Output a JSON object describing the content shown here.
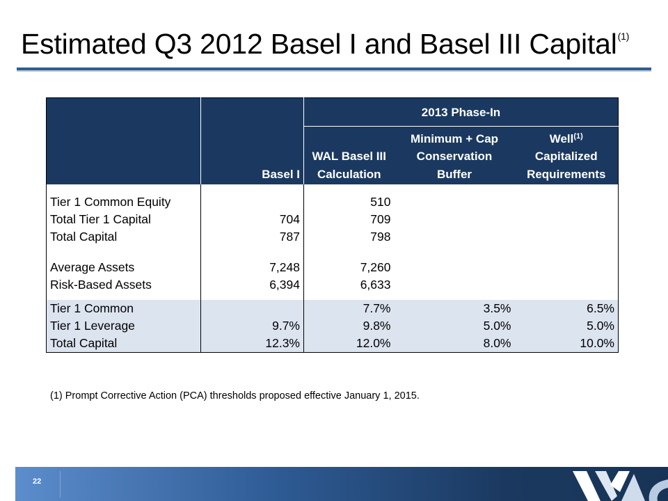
{
  "title": {
    "text": "Estimated Q3 2012 Basel I and Basel III Capital",
    "sup": "(1)"
  },
  "table": {
    "phase_header": "2013 Phase-In",
    "col_basel1": "Basel I",
    "col_wal_l1": "WAL Basel III",
    "col_wal_l2": "Calculation",
    "col_min_l1": "Minimum + Cap",
    "col_min_l2": "Conservation",
    "col_min_l3": "Buffer",
    "col_well_l1": "Well",
    "col_well_sup": "(1)",
    "col_well_l2": "Capitalized",
    "col_well_l3": "Requirements",
    "rows": [
      {
        "label": "Tier 1 Common Equity",
        "basel1": "",
        "wal": "510",
        "min": "",
        "well": ""
      },
      {
        "label": "Total Tier 1 Capital",
        "basel1": "704",
        "wal": "709",
        "min": "",
        "well": ""
      },
      {
        "label": "Total Capital",
        "basel1": "787",
        "wal": "798",
        "min": "",
        "well": ""
      },
      {
        "label": "Average Assets",
        "basel1": "7,248",
        "wal": "7,260",
        "min": "",
        "well": ""
      },
      {
        "label": "Risk-Based Assets",
        "basel1": "6,394",
        "wal": "6,633",
        "min": "",
        "well": ""
      },
      {
        "label": "Tier 1 Common",
        "basel1": "",
        "wal": "7.7%",
        "min": "3.5%",
        "well": "6.5%"
      },
      {
        "label": "Tier 1 Leverage",
        "basel1": "9.7%",
        "wal": "9.8%",
        "min": "5.0%",
        "well": "5.0%"
      },
      {
        "label": "Total Capital",
        "basel1": "12.3%",
        "wal": "12.0%",
        "min": "8.0%",
        "well": "10.0%"
      }
    ]
  },
  "footnote": "(1) Prompt Corrective Action (PCA) thresholds proposed effective January 1, 2015.",
  "footer": {
    "page_number": "22",
    "logo_icon": "wa-logo-icon"
  },
  "colors": {
    "header_bg": "#1b3960",
    "shade_bg": "#dce4f0",
    "title_rule": "#2f5f8f"
  }
}
